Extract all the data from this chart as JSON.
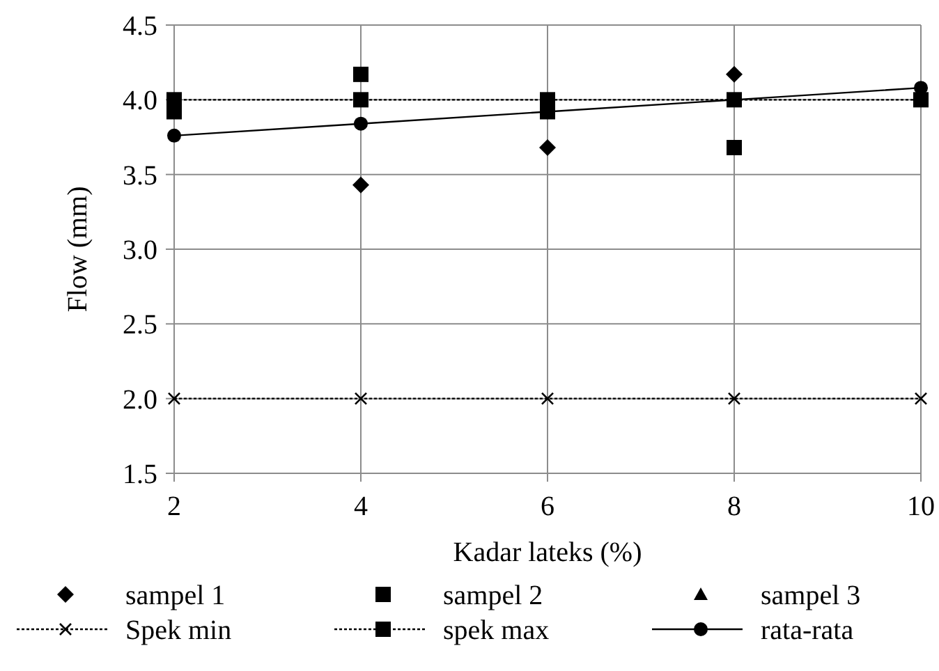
{
  "chart_data": {
    "type": "scatter",
    "xlabel": "Kadar lateks (%)",
    "ylabel": "Flow (mm)",
    "x": [
      2,
      4,
      6,
      8,
      10
    ],
    "xlim": [
      2,
      10
    ],
    "xticks": [
      2,
      4,
      6,
      8,
      10
    ],
    "ylim": [
      1.5,
      4.5
    ],
    "yticks": [
      {
        "value": 1.5,
        "label": "1.5"
      },
      {
        "value": 2,
        "label": "2.0"
      },
      {
        "value": 2.5,
        "label": "2.5"
      },
      {
        "value": 3,
        "label": "3.0"
      },
      {
        "value": 3.5,
        "label": "3.5"
      },
      {
        "value": 4,
        "label": "4.0"
      },
      {
        "value": 4.5,
        "label": "4.5"
      }
    ],
    "grid": true,
    "legend": "bottom",
    "series": [
      {
        "name": "sampel 1",
        "marker": "diamond",
        "color": "#000000",
        "values": [
          null,
          3.43,
          3.68,
          4.17,
          null
        ]
      },
      {
        "name": "sampel 2",
        "marker": "square",
        "color": "#000000",
        "values": [
          3.92,
          4.17,
          3.92,
          3.68,
          null
        ]
      },
      {
        "name": "sampel 3",
        "marker": "triangle",
        "color": "#000000",
        "values": [
          null,
          null,
          null,
          null,
          null
        ]
      },
      {
        "name": "Spek min",
        "type": "line",
        "marker": "cross",
        "line_style": "dotted",
        "color": "#000000",
        "values": [
          2,
          2,
          2,
          2,
          2
        ]
      },
      {
        "name": "spek max",
        "type": "line",
        "marker": "square",
        "line_style": "dotted",
        "color": "#000000",
        "values": [
          4,
          4,
          4,
          4,
          4
        ]
      },
      {
        "name": "rata-rata",
        "type": "line",
        "marker": "circle",
        "line_style": "solid",
        "color": "#000000",
        "values": [
          3.76,
          3.84,
          3.92,
          4.0,
          4.08
        ]
      }
    ]
  }
}
